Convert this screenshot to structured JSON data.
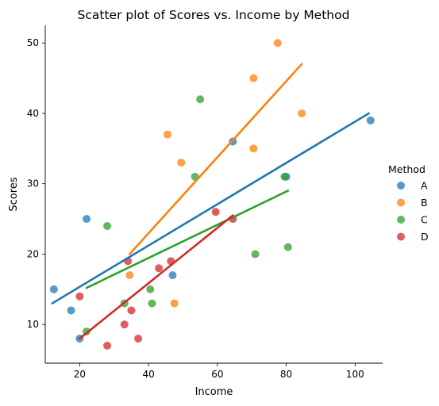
{
  "chart_data": {
    "type": "scatter",
    "title": "Scatter plot of Scores vs. Income by Method",
    "xlabel": "Income",
    "ylabel": "Scores",
    "xlim": [
      10,
      108
    ],
    "ylim": [
      4.5,
      52.5
    ],
    "xticks": [
      20,
      40,
      60,
      80,
      100
    ],
    "yticks": [
      10,
      20,
      30,
      40,
      50
    ],
    "grid": false,
    "legend": {
      "title": "Method",
      "placement": "right"
    },
    "series": [
      {
        "name": "A",
        "color": "#1f77b4",
        "points": [
          [
            12.5,
            15
          ],
          [
            17.5,
            12
          ],
          [
            20,
            8
          ],
          [
            22,
            25
          ],
          [
            47,
            17
          ],
          [
            64.5,
            36
          ],
          [
            80,
            31
          ],
          [
            104.5,
            39
          ]
        ],
        "fit": [
          [
            12,
            13
          ],
          [
            104,
            40
          ]
        ]
      },
      {
        "name": "B",
        "color": "#ff7f0e",
        "points": [
          [
            34.5,
            17
          ],
          [
            45.5,
            37
          ],
          [
            47.5,
            13
          ],
          [
            49.5,
            33
          ],
          [
            70.5,
            35
          ],
          [
            70.5,
            45
          ],
          [
            77.5,
            50
          ],
          [
            84.5,
            40
          ]
        ],
        "fit": [
          [
            34.5,
            20
          ],
          [
            84.5,
            47
          ]
        ]
      },
      {
        "name": "C",
        "color": "#2ca02c",
        "points": [
          [
            22,
            9
          ],
          [
            28,
            24
          ],
          [
            33,
            13
          ],
          [
            40.5,
            15
          ],
          [
            41,
            13
          ],
          [
            53.5,
            31
          ],
          [
            55,
            42
          ],
          [
            71,
            20
          ],
          [
            79.5,
            31
          ],
          [
            80.5,
            21
          ]
        ],
        "fit": [
          [
            22,
            15.2
          ],
          [
            80.5,
            29
          ]
        ]
      },
      {
        "name": "D",
        "color": "#d62728",
        "points": [
          [
            20,
            14
          ],
          [
            28,
            7
          ],
          [
            33,
            10
          ],
          [
            34,
            19
          ],
          [
            35,
            12
          ],
          [
            37,
            8
          ],
          [
            43,
            18
          ],
          [
            46.5,
            19
          ],
          [
            59.5,
            26
          ],
          [
            64.5,
            25
          ]
        ],
        "fit": [
          [
            20,
            8
          ],
          [
            64.5,
            25.5
          ]
        ]
      }
    ]
  }
}
